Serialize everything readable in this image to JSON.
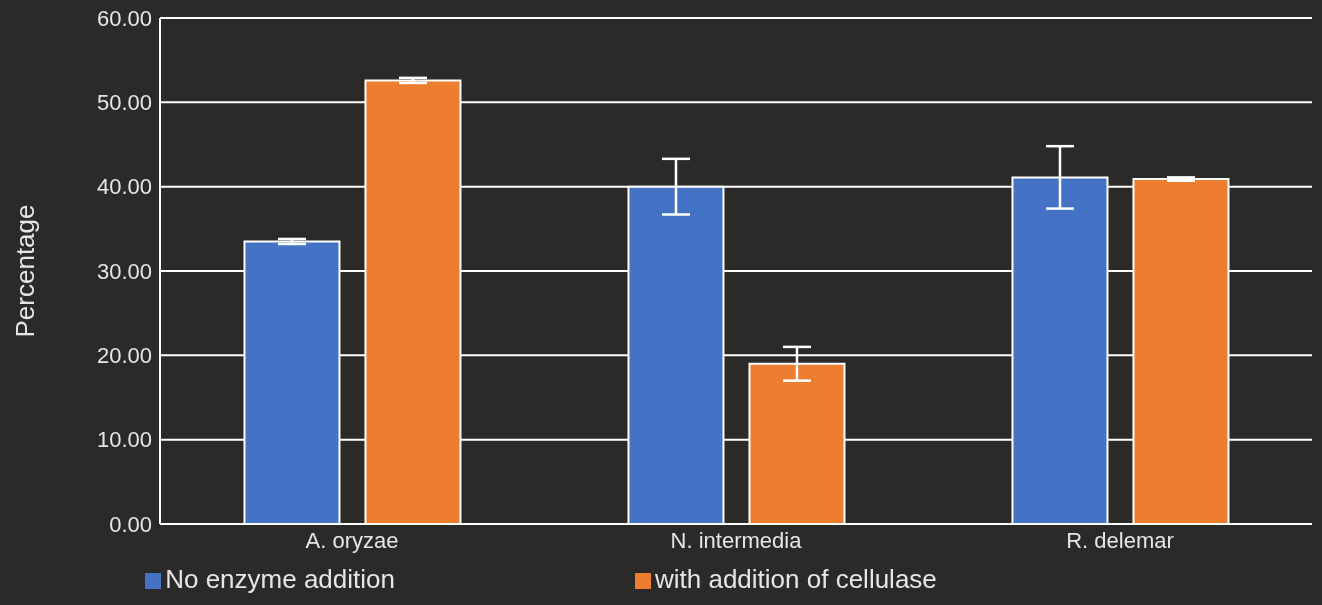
{
  "chart_data": {
    "type": "bar",
    "ylabel": "Percentage",
    "categories": [
      "A. oryzae",
      "N. intermedia",
      "R. delemar"
    ],
    "series": [
      {
        "name": "No enzyme addition",
        "color": "#4472c4",
        "values": [
          33.5,
          40.0,
          41.1
        ],
        "errors": [
          0.3,
          3.3,
          3.7
        ]
      },
      {
        "name": "with addition of cellulase",
        "color": "#ed7d31",
        "values": [
          52.6,
          19.0,
          40.9
        ],
        "errors": [
          0.3,
          2.0,
          0.2
        ]
      }
    ],
    "ylim": [
      0,
      60
    ],
    "yticks": [
      {
        "value": 0,
        "label": "0.00"
      },
      {
        "value": 10,
        "label": "10.00"
      },
      {
        "value": 20,
        "label": "20.00"
      },
      {
        "value": 30,
        "label": "30.00"
      },
      {
        "value": 40,
        "label": "40.00"
      },
      {
        "value": 50,
        "label": "50.00"
      },
      {
        "value": 60,
        "label": "60.00"
      }
    ],
    "grid": "y",
    "legend": "bottom"
  }
}
